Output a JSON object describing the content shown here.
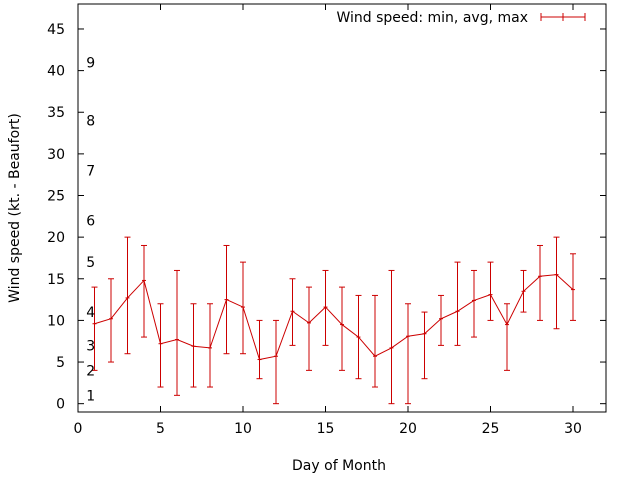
{
  "chart_data": {
    "type": "line",
    "title": "",
    "xlabel": "Day of Month",
    "ylabel": "Wind speed (kt. - Beaufort)",
    "xlim": [
      0,
      32
    ],
    "ylim": [
      -1,
      48
    ],
    "xticks": [
      0,
      5,
      10,
      15,
      20,
      25,
      30
    ],
    "yticks": [
      0,
      5,
      10,
      15,
      20,
      25,
      30,
      35,
      40,
      45
    ],
    "grid": false,
    "legend_position": "top-right",
    "series_color": "#cc0000",
    "series": [
      {
        "name": "Wind speed: min, avg, max",
        "x": [
          1,
          2,
          3,
          4,
          5,
          6,
          7,
          8,
          9,
          10,
          11,
          12,
          13,
          14,
          15,
          16,
          17,
          18,
          19,
          20,
          21,
          22,
          23,
          24,
          25,
          26,
          27,
          28,
          29,
          30
        ],
        "avg": [
          9.6,
          10.2,
          12.7,
          14.8,
          7.2,
          7.7,
          6.9,
          6.7,
          12.5,
          11.6,
          5.3,
          5.7,
          11.1,
          9.7,
          11.6,
          9.5,
          8.0,
          5.7,
          6.7,
          8.1,
          8.4,
          10.2,
          11.1,
          12.4,
          13.1,
          9.5,
          13.5,
          15.3,
          15.5,
          13.7
        ],
        "min": [
          4,
          5,
          6,
          8,
          2,
          1,
          2,
          2,
          6,
          6,
          3,
          0,
          7,
          4,
          7,
          4,
          3,
          2,
          0,
          0,
          3,
          7,
          7,
          8,
          10,
          4,
          11,
          10,
          9,
          10
        ],
        "max": [
          14,
          15,
          20,
          19,
          12,
          16,
          12,
          12,
          19,
          17,
          10,
          10,
          15,
          14,
          16,
          14,
          13,
          13,
          16,
          12,
          11,
          13,
          17,
          16,
          17,
          12,
          16,
          19,
          20,
          18
        ]
      }
    ],
    "beaufort_annotations": [
      {
        "label": "1",
        "y": 1
      },
      {
        "label": "2",
        "y": 4
      },
      {
        "label": "3",
        "y": 7
      },
      {
        "label": "4",
        "y": 11
      },
      {
        "label": "5",
        "y": 17
      },
      {
        "label": "6",
        "y": 22
      },
      {
        "label": "7",
        "y": 28
      },
      {
        "label": "8",
        "y": 34
      },
      {
        "label": "9",
        "y": 41
      }
    ]
  }
}
